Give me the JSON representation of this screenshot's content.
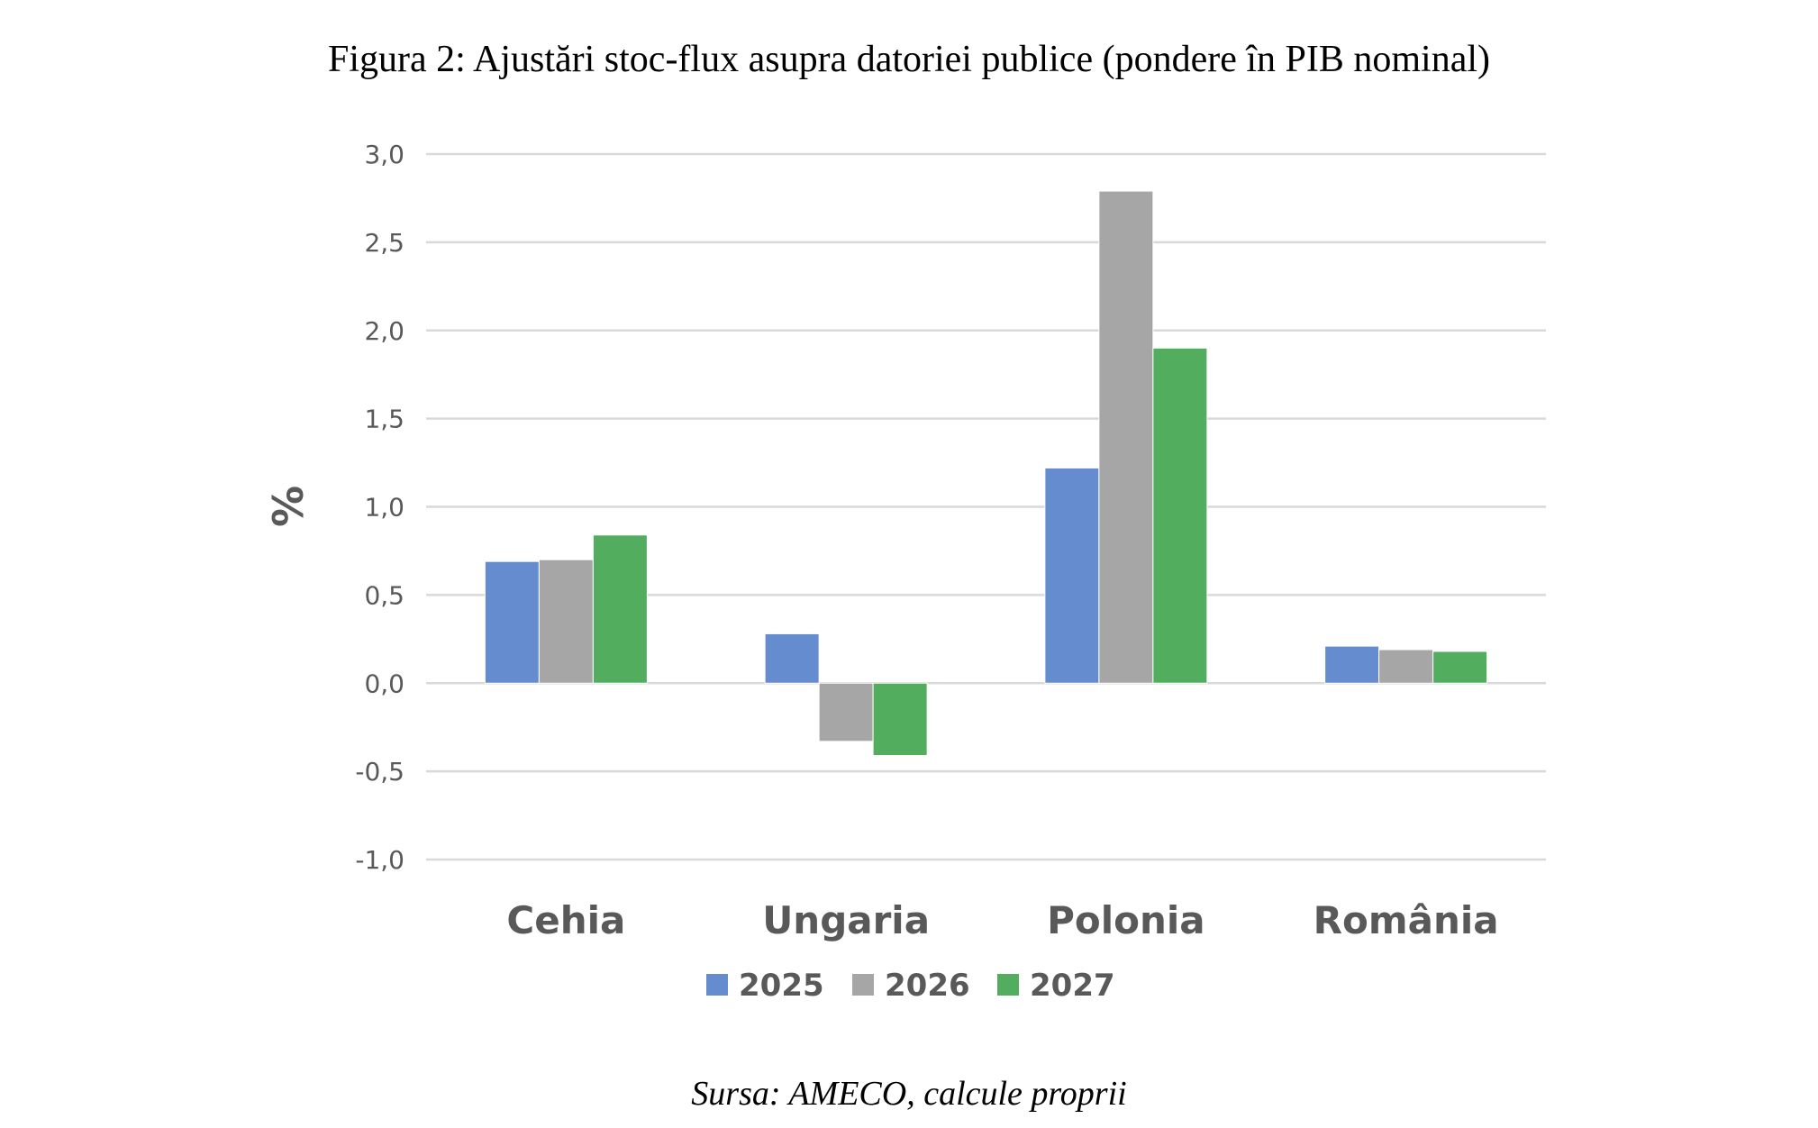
{
  "chart_data": {
    "type": "bar",
    "title": "Figura 2: Ajustări stoc-flux asupra datoriei publice (pondere în PIB nominal)",
    "source": "Sursa: AMECO, calcule proprii",
    "xlabel": "",
    "ylabel": "%",
    "ylim": [
      -1.0,
      3.0
    ],
    "yticks": [
      "3,0",
      "2,5",
      "2,0",
      "1,5",
      "1,0",
      "0,5",
      "0,0",
      "-0,5",
      "-1,0"
    ],
    "ytick_values": [
      3.0,
      2.5,
      2.0,
      1.5,
      1.0,
      0.5,
      0.0,
      -0.5,
      -1.0
    ],
    "grid": true,
    "legend_position": "bottom",
    "categories": [
      "Cehia",
      "Ungaria",
      "Polonia",
      "România"
    ],
    "series": [
      {
        "name": "2025",
        "color": "#658CCF",
        "values": [
          0.69,
          0.28,
          1.22,
          0.21
        ]
      },
      {
        "name": "2026",
        "color": "#A6A6A6",
        "values": [
          0.7,
          -0.33,
          2.79,
          0.19
        ]
      },
      {
        "name": "2027",
        "color": "#52AD5E",
        "values": [
          0.84,
          -0.41,
          1.9,
          0.18
        ]
      }
    ]
  }
}
